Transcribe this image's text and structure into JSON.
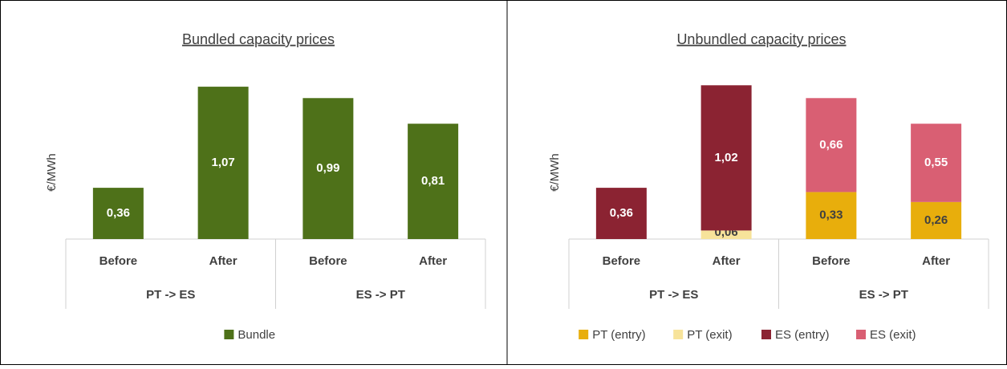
{
  "chart_data": [
    {
      "type": "bar",
      "title": "Bundled capacity prices",
      "y_label": "€/MWh",
      "categories": [
        "Before",
        "After",
        "Before",
        "After"
      ],
      "group_labels": [
        "PT -> ES",
        "ES -> PT"
      ],
      "ylim": [
        0,
        1.2
      ],
      "legend": "bottom",
      "series": [
        {
          "name": "Bundle",
          "color": "#4e7119",
          "values": [
            0.36,
            1.07,
            0.99,
            0.81
          ],
          "value_labels": [
            "0,36",
            "1,07",
            "0,99",
            "0,81"
          ]
        }
      ]
    },
    {
      "type": "stacked_bar",
      "title": "Unbundled capacity prices",
      "y_label": "€/MWh",
      "categories": [
        "Before",
        "After",
        "Before",
        "After"
      ],
      "group_labels": [
        "PT -> ES",
        "ES -> PT"
      ],
      "ylim": [
        0,
        1.2
      ],
      "legend": "bottom",
      "series": [
        {
          "name": "PT (entry)",
          "color": "#e8ae0c",
          "values": [
            null,
            null,
            0.33,
            0.26
          ],
          "value_labels": [
            null,
            null,
            "0,33",
            "0,26"
          ]
        },
        {
          "name": "PT (exit)",
          "color": "#f7e39a",
          "values": [
            null,
            0.06,
            null,
            null
          ],
          "value_labels": [
            null,
            "0,06",
            null,
            null
          ]
        },
        {
          "name": "ES (entry)",
          "color": "#8b2332",
          "values": [
            0.36,
            1.02,
            null,
            null
          ],
          "value_labels": [
            "0,36",
            "1,02",
            null,
            null
          ]
        },
        {
          "name": "ES (exit)",
          "color": "#d95f73",
          "values": [
            null,
            null,
            0.66,
            0.55
          ],
          "value_labels": [
            null,
            null,
            "0,66",
            "0,55"
          ]
        }
      ]
    }
  ]
}
